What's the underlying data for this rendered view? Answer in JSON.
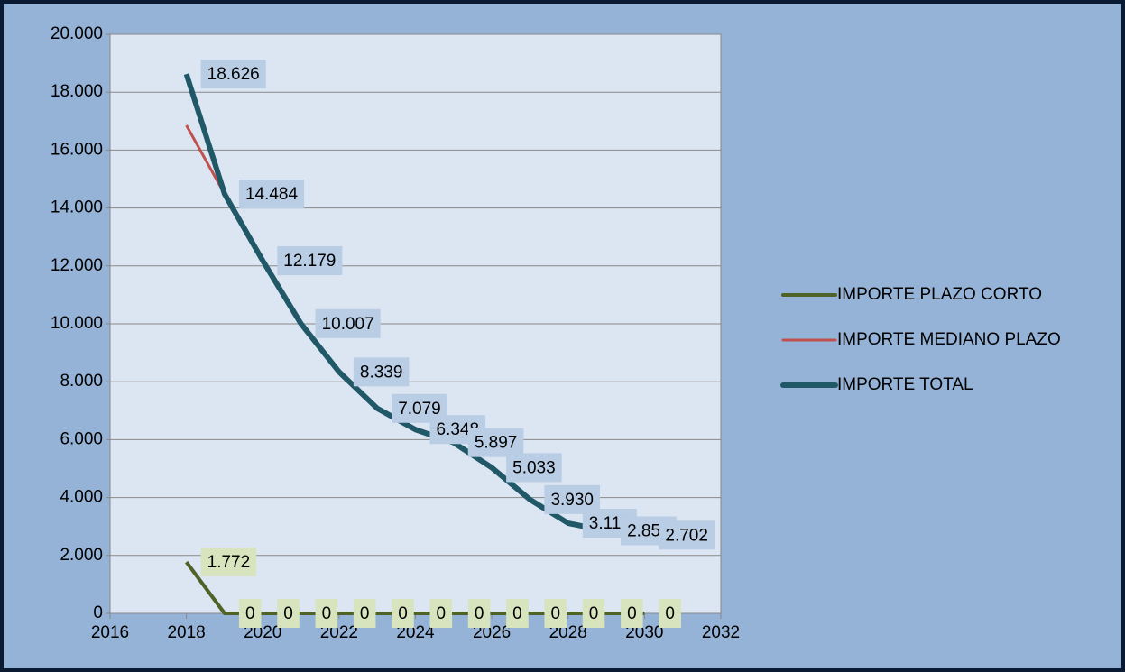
{
  "chart_data": {
    "type": "line",
    "x": [
      2018,
      2019,
      2020,
      2021,
      2022,
      2023,
      2024,
      2025,
      2026,
      2027,
      2028,
      2029,
      2030
    ],
    "series": [
      {
        "name": "IMPORTE PLAZO CORTO",
        "color": "#4f6228",
        "values": [
          1772,
          0,
          0,
          0,
          0,
          0,
          0,
          0,
          0,
          0,
          0,
          0,
          0
        ],
        "value_labels": [
          "1.772",
          "0",
          "0",
          "0",
          "0",
          "0",
          "0",
          "0",
          "0",
          "0",
          "0",
          "0",
          "0"
        ]
      },
      {
        "name": "IMPORTE MEDIANO PLAZO",
        "color": "#c0504d",
        "values": [
          16854,
          14484,
          12179,
          10007,
          8339,
          7079,
          6348,
          5897,
          5033,
          3930,
          3115,
          2850,
          2702
        ]
      },
      {
        "name": "IMPORTE TOTAL",
        "color": "#215868",
        "values": [
          18626,
          14484,
          12179,
          10007,
          8339,
          7079,
          6348,
          5897,
          5033,
          3930,
          3115,
          2850,
          2702
        ],
        "value_labels": [
          "18.626",
          "14.484",
          "12.179",
          "10.007",
          "8.339",
          "7.079",
          "6.348",
          "5.897",
          "5.033",
          "3.930",
          "3.115",
          "2.850",
          "2.702"
        ]
      }
    ],
    "xlim": [
      2016,
      2032
    ],
    "xticks": [
      2016,
      2018,
      2020,
      2022,
      2024,
      2026,
      2028,
      2030,
      2032
    ],
    "ylim": [
      0,
      20000
    ],
    "yticks": [
      0,
      {
        "value": 2000,
        "label": "2.000"
      },
      {
        "value": 4000,
        "label": "4.000"
      },
      {
        "value": 6000,
        "label": "6.000"
      },
      {
        "value": 8000,
        "label": "8.000"
      },
      {
        "value": 10000,
        "label": "10.000"
      },
      {
        "value": 12000,
        "label": "12.000"
      },
      {
        "value": 14000,
        "label": "14.000"
      },
      {
        "value": 16000,
        "label": "16.000"
      },
      {
        "value": 18000,
        "label": "18.000"
      },
      {
        "value": 20000,
        "label": "20.000"
      }
    ],
    "grid": true,
    "legend": "right"
  }
}
